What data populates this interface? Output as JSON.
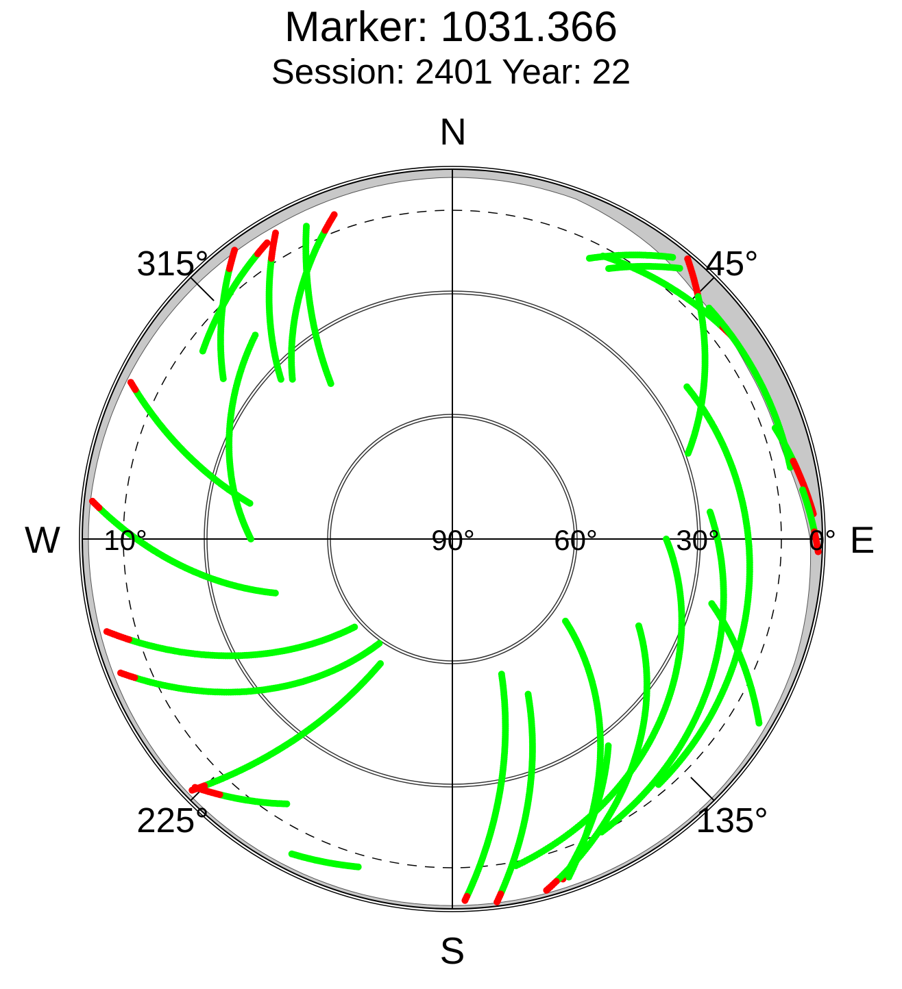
{
  "chart_data": {
    "type": "polar-scatter",
    "title": "Marker: 1031.366",
    "subtitle": "Session: 2401 Year: 22",
    "compass": {
      "north": "N",
      "east": "E",
      "south": "S",
      "west": "W"
    },
    "azimuth_labels": [
      {
        "az": 45,
        "text": "45°"
      },
      {
        "az": 135,
        "text": "135°"
      },
      {
        "az": 225,
        "text": "225°"
      },
      {
        "az": 315,
        "text": "315°"
      }
    ],
    "elevation_labels": [
      {
        "el": 90,
        "text": "90°"
      },
      {
        "el": 60,
        "text": "60°"
      },
      {
        "el": 30,
        "text": "30°"
      },
      {
        "el": 10,
        "text": "10°"
      },
      {
        "el": 0,
        "text": "0°"
      }
    ],
    "elevation_circles": [
      60,
      30
    ],
    "cutoff_elevation": 10,
    "colors": {
      "accepted": "#00ff00",
      "rejected": "#ff0000",
      "mask": "#c8c8c8",
      "grid": "#000000"
    },
    "mask_profile": [
      {
        "az": 0,
        "el": 2
      },
      {
        "az": 20,
        "el": 2
      },
      {
        "az": 35,
        "el": 4
      },
      {
        "az": 45,
        "el": 6
      },
      {
        "az": 60,
        "el": 7
      },
      {
        "az": 75,
        "el": 7
      },
      {
        "az": 90,
        "el": 3
      },
      {
        "az": 110,
        "el": 1.5
      },
      {
        "az": 135,
        "el": 0.8
      },
      {
        "az": 180,
        "el": 0.8
      },
      {
        "az": 225,
        "el": 0.8
      },
      {
        "az": 260,
        "el": 1.5
      },
      {
        "az": 275,
        "el": 1.5
      },
      {
        "az": 300,
        "el": 2
      },
      {
        "az": 330,
        "el": 2.5
      },
      {
        "az": 360,
        "el": 2
      }
    ],
    "tracks": [
      {
        "az": [
          26,
          38
        ],
        "el": [
          14,
          3
        ],
        "red_below": 0
      },
      {
        "az": [
          30,
          40
        ],
        "el": [
          14,
          4
        ],
        "red_below": 0
      },
      {
        "az": [
          28,
          54
        ],
        "el": [
          12,
          6
        ],
        "red_below": 6.5
      },
      {
        "az": [
          40,
          70
        ],
        "el": [
          1,
          29
        ],
        "red_below": 6
      },
      {
        "az": [
          48,
          78
        ],
        "el": [
          6,
          6
        ],
        "red_below": 0
      },
      {
        "az": [
          71,
          86
        ],
        "el": [
          7,
          2
        ],
        "red_below": 5
      },
      {
        "az": [
          82,
          92
        ],
        "el": [
          4,
          1
        ],
        "red_below": 2
      },
      {
        "az": [
          104,
          121
        ],
        "el": [
          25,
          3
        ],
        "red_below": 0
      },
      {
        "az": [
          57,
          140
        ],
        "el": [
          22,
          12
        ],
        "red_below": 0
      },
      {
        "az": [
          90,
          169
        ],
        "el": [
          38,
          9
        ],
        "red_below": 0
      },
      {
        "az": [
          84,
          153
        ],
        "el": [
          27,
          10
        ],
        "red_below": 0
      },
      {
        "az": [
          143,
          162
        ],
        "el": [
          27,
          3
        ],
        "red_below": 5
      },
      {
        "az": [
          126,
          161
        ],
        "el": [
          56,
          3
        ],
        "red_below": 0
      },
      {
        "az": [
          115,
          165
        ],
        "el": [
          40,
          1.5
        ],
        "red_below": 3
      },
      {
        "az": [
          154,
          173
        ],
        "el": [
          48,
          1
        ],
        "red_below": 3
      },
      {
        "az": [
          160,
          178
        ],
        "el": [
          55,
          2
        ],
        "red_below": 3
      },
      {
        "az": [
          210,
          226
        ],
        "el": [
          55,
          2
        ],
        "red_below": 5
      },
      {
        "az": [
          196,
          207
        ],
        "el": [
          7,
          4
        ],
        "red_below": 0
      },
      {
        "az": [
          212,
          226
        ],
        "el": [
          14,
          3
        ],
        "red_below": 6
      },
      {
        "az": [
          215,
          248
        ],
        "el": [
          59,
          3
        ],
        "red_below": 6
      },
      {
        "az": [
          228,
          255
        ],
        "el": [
          58,
          3
        ],
        "red_below": 8
      },
      {
        "az": [
          253,
          276
        ],
        "el": [
          45,
          2
        ],
        "red_below": 4
      },
      {
        "az": [
          270,
          316
        ],
        "el": [
          41,
          21
        ],
        "red_below": 0
      },
      {
        "az": [
          280,
          296
        ],
        "el": [
          40,
          3
        ],
        "red_below": 5
      },
      {
        "az": [
          307,
          328
        ],
        "el": [
          14,
          5
        ],
        "red_below": 6
      },
      {
        "az": [
          313,
          330
        ],
        "el": [
          33,
          4
        ],
        "red_below": 9
      },
      {
        "az": [
          315,
          340
        ],
        "el": [
          35,
          6
        ],
        "red_below": 9
      },
      {
        "az": [
          322,
          335
        ],
        "el": [
          42,
          6
        ],
        "red_below": 6
      },
      {
        "az": [
          305,
          323
        ],
        "el": [
          22,
          2
        ],
        "red_below": 5
      }
    ]
  }
}
